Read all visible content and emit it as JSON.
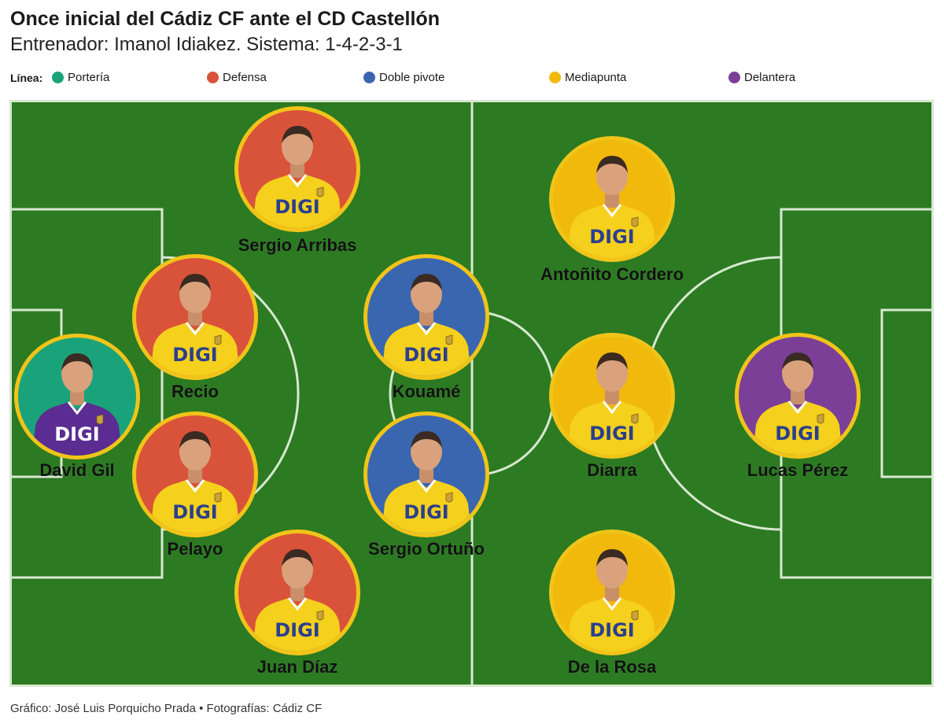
{
  "title": "Once inicial del Cádiz CF ante el CD Castellón",
  "subtitle": "Entrenador: Imanol Idiakez. Sistema: 1-4-2-3-1",
  "legend": {
    "title": "Línea:",
    "items": [
      {
        "label": "Portería",
        "color": "#1aa37a"
      },
      {
        "label": "Defensa",
        "color": "#d9533b"
      },
      {
        "label": "Doble pivote",
        "color": "#3a66b0"
      },
      {
        "label": "Mediapunta",
        "color": "#f0b90b"
      },
      {
        "label": "Delantera",
        "color": "#7b3f98"
      }
    ]
  },
  "pitch": {
    "grass": "#2c7a22",
    "lines": "#d8e8d0"
  },
  "jersey": {
    "color": "#f5d01c",
    "sponsor": "DIGI",
    "sponsor_color": "#2a3f8f",
    "gk_color": "#5b2c91"
  },
  "players": [
    {
      "name": "David Gil",
      "line": "Portería",
      "bg": "#1aa37a",
      "goalkeeper": true
    },
    {
      "name": "Sergio Arribas",
      "line": "Defensa",
      "bg": "#d9533b"
    },
    {
      "name": "Recio",
      "line": "Defensa",
      "bg": "#d9533b"
    },
    {
      "name": "Pelayo",
      "line": "Defensa",
      "bg": "#d9533b"
    },
    {
      "name": "Juan Díaz",
      "line": "Defensa",
      "bg": "#d9533b"
    },
    {
      "name": "Kouamé",
      "line": "Doble pivote",
      "bg": "#3a66b0"
    },
    {
      "name": "Sergio Ortuño",
      "line": "Doble pivote",
      "bg": "#3a66b0"
    },
    {
      "name": "Antoñito Cordero",
      "line": "Mediapunta",
      "bg": "#f0b90b"
    },
    {
      "name": "Diarra",
      "line": "Mediapunta",
      "bg": "#f0b90b"
    },
    {
      "name": "De la Rosa",
      "line": "Mediapunta",
      "bg": "#f0b90b"
    },
    {
      "name": "Lucas Pérez",
      "line": "Delantera",
      "bg": "#7b3f98"
    }
  ],
  "footer": "Gráfico: José Luis Porquicho Prada • Fotografías: Cádiz CF"
}
